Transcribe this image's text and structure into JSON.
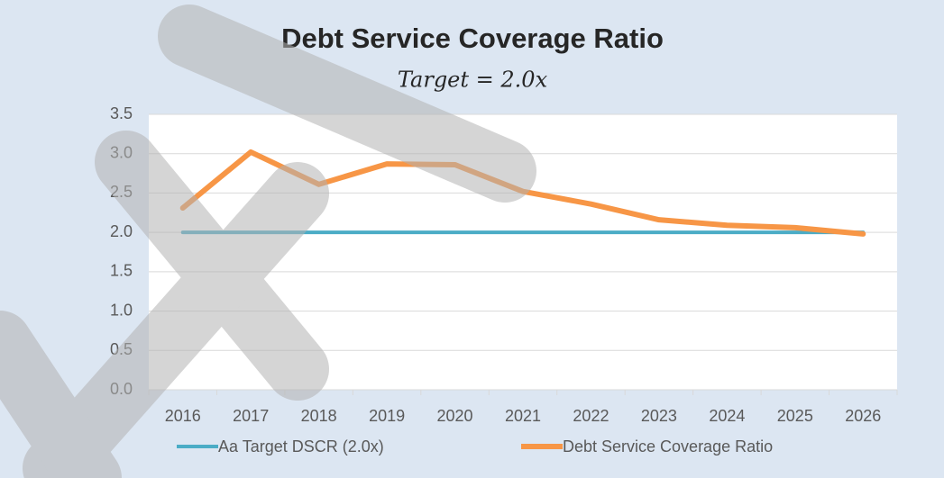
{
  "chart_data": {
    "type": "line",
    "title": "Debt Service Coverage Ratio",
    "subtitle": "Target = 2.0x",
    "categories": [
      "2016",
      "2017",
      "2018",
      "2019",
      "2020",
      "2021",
      "2022",
      "2023",
      "2024",
      "2025",
      "2026"
    ],
    "series": [
      {
        "name": "Aa Target DSCR (2.0x)",
        "color": "#4bacc6",
        "values": [
          2.0,
          2.0,
          2.0,
          2.0,
          2.0,
          2.0,
          2.0,
          2.0,
          2.0,
          2.0,
          2.0
        ]
      },
      {
        "name": "Debt Service Coverage Ratio",
        "color": "#f79646",
        "values": [
          2.31,
          3.02,
          2.61,
          2.87,
          2.86,
          2.52,
          2.36,
          2.16,
          2.09,
          2.06,
          1.98
        ]
      }
    ],
    "ylim": [
      0,
      3.5
    ],
    "yticks": [
      {
        "value": 0,
        "label": "0.0"
      },
      0.5,
      {
        "value": 1,
        "label": "1.0"
      },
      1.5,
      {
        "value": 2,
        "label": "2.0"
      },
      2.5,
      {
        "value": 3,
        "label": "3.0"
      },
      3.5
    ],
    "grid": true,
    "legend": "bottom"
  }
}
